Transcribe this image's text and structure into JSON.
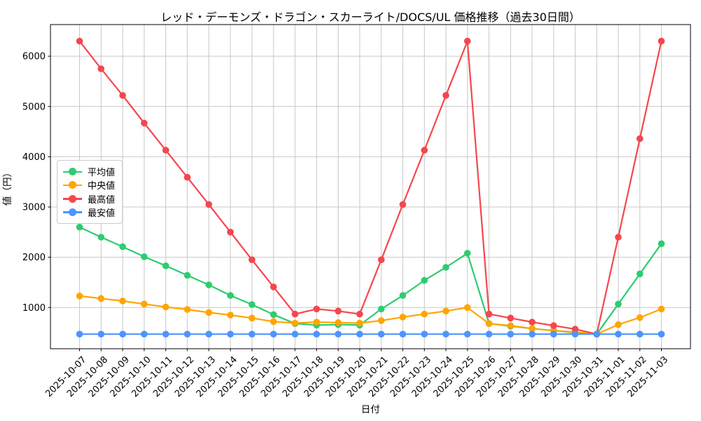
{
  "chart_data": {
    "type": "line",
    "title": "レッド・デーモンズ・ドラゴン・スカーライト/DOCS/UL 価格推移（過去30日間）",
    "xlabel": "日付",
    "ylabel": "値（円）",
    "x": [
      "2025-10-07",
      "2025-10-08",
      "2025-10-09",
      "2025-10-10",
      "2025-10-11",
      "2025-10-12",
      "2025-10-13",
      "2025-10-14",
      "2025-10-15",
      "2025-10-16",
      "2025-10-17",
      "2025-10-18",
      "2025-10-19",
      "2025-10-20",
      "2025-10-21",
      "2025-10-22",
      "2025-10-23",
      "2025-10-24",
      "2025-10-25",
      "2025-10-26",
      "2025-10-27",
      "2025-10-28",
      "2025-10-29",
      "2025-10-30",
      "2025-10-31",
      "2025-11-01",
      "2025-11-02",
      "2025-11-03"
    ],
    "series": [
      {
        "name": "平均値",
        "key": "average",
        "color": "#2ecc71",
        "values": [
          2600,
          2400,
          2210,
          2010,
          1830,
          1640,
          1450,
          1240,
          1060,
          860,
          680,
          650,
          660,
          650,
          970,
          1240,
          1540,
          1800,
          2080,
          680,
          630,
          580,
          540,
          500,
          470,
          1070,
          1670,
          2270
        ]
      },
      {
        "name": "中央値",
        "key": "median",
        "color": "#ffa502",
        "values": [
          1230,
          1180,
          1130,
          1070,
          1010,
          960,
          900,
          850,
          790,
          720,
          690,
          710,
          700,
          690,
          740,
          810,
          870,
          930,
          1000,
          680,
          640,
          580,
          540,
          510,
          470,
          660,
          800,
          970
        ]
      },
      {
        "name": "最高値",
        "key": "max",
        "color": "#f4474d",
        "values": [
          6300,
          5750,
          5220,
          4670,
          4130,
          3590,
          3050,
          2500,
          1950,
          1410,
          870,
          970,
          930,
          870,
          1950,
          3050,
          4130,
          5220,
          6300,
          870,
          790,
          710,
          640,
          570,
          470,
          2400,
          4360,
          6300
        ]
      },
      {
        "name": "最安値",
        "key": "min",
        "color": "#4d94ff",
        "values": [
          470,
          470,
          470,
          470,
          470,
          470,
          470,
          470,
          470,
          470,
          470,
          470,
          470,
          470,
          470,
          470,
          470,
          470,
          470,
          470,
          470,
          470,
          470,
          470,
          470,
          470,
          470,
          470
        ]
      }
    ],
    "yticks": [
      1000,
      2000,
      3000,
      4000,
      5000,
      6000
    ],
    "ylim": [
      180,
      6630
    ],
    "grid": true,
    "grid_color": "#c8c8c8",
    "legend_position": "center-left",
    "background": "#ffffff"
  }
}
